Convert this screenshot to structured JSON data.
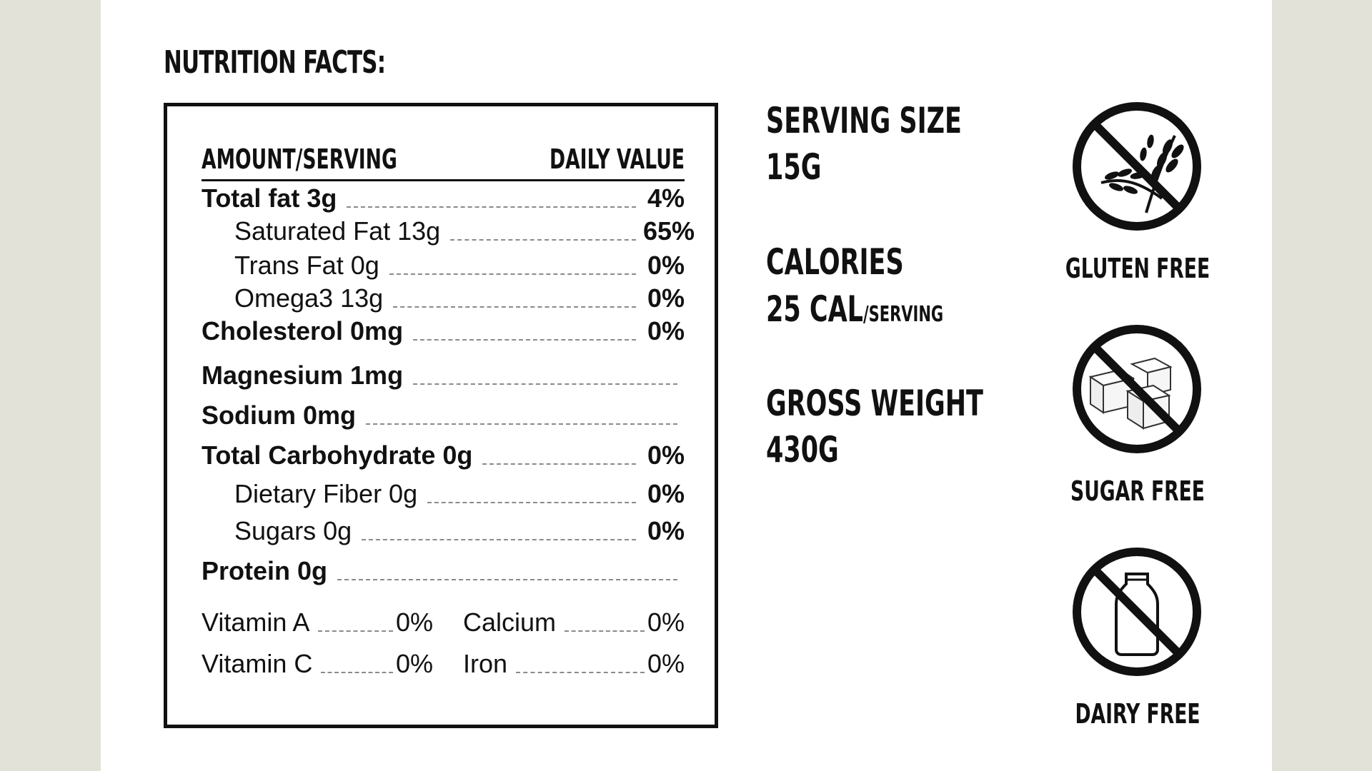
{
  "title": "NUTRITION FACTS:",
  "label": {
    "header_left": "AMOUNT/SERVING",
    "header_right": "DAILY VALUE",
    "rows": [
      {
        "name": "Total fat 3g",
        "pct": "4%",
        "bold": true
      },
      {
        "name": "Saturated Fat 13g",
        "pct": "65%",
        "bold": false
      },
      {
        "name": "Trans Fat 0g",
        "pct": "0%",
        "bold": false
      },
      {
        "name": "Omega3 13g",
        "pct": "0%",
        "bold": false
      },
      {
        "name": "Cholesterol 0mg",
        "pct": "0%",
        "bold": true
      },
      {
        "name": "Magnesium 1mg",
        "pct": "",
        "bold": true
      },
      {
        "name": "Sodium 0mg",
        "pct": "",
        "bold": true
      },
      {
        "name": "Total Carbohydrate 0g",
        "pct": "0%",
        "bold": true
      },
      {
        "name": "Dietary Fiber 0g",
        "pct": "0%",
        "bold": false
      },
      {
        "name": "Sugars 0g",
        "pct": "0%",
        "bold": false
      },
      {
        "name": "Protein 0g",
        "pct": "",
        "bold": true
      }
    ],
    "vitamins": [
      {
        "name": "Vitamin A",
        "pct": "0%"
      },
      {
        "name": "Calcium",
        "pct": "0%"
      },
      {
        "name": "Vitamin C",
        "pct": "0%"
      },
      {
        "name": "Iron",
        "pct": "0%"
      }
    ]
  },
  "info": {
    "serving_label": "SERVING SIZE",
    "serving_value": "15G",
    "calories_label": "CALORIES",
    "calories_value": "25 CAL",
    "calories_unit": "/SERVING",
    "weight_label": "GROSS WEIGHT",
    "weight_value": "430G"
  },
  "badges": [
    {
      "label": "GLUTEN FREE",
      "icon": "no-gluten-icon"
    },
    {
      "label": "SUGAR FREE",
      "icon": "no-sugar-icon"
    },
    {
      "label": "DAIRY FREE",
      "icon": "no-dairy-icon"
    }
  ]
}
